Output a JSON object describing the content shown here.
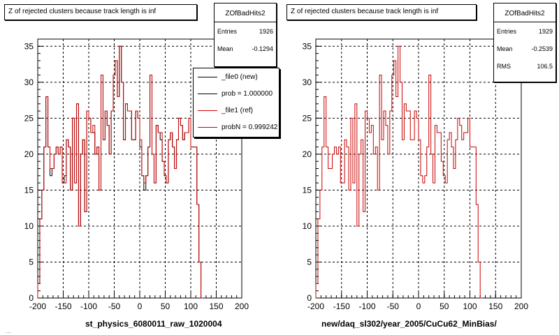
{
  "chart_data": [
    {
      "type": "histogram",
      "title": "Z of rejected clusters  because track length is inf",
      "xlabel": "st_physics_6080011_raw_1020004",
      "ylabel": "",
      "xlim": [
        -200,
        200
      ],
      "ylim": [
        0,
        36
      ],
      "x_ticks": [
        "-200",
        "-150",
        "-100",
        "-50",
        "0",
        "50",
        "100",
        "150",
        "200"
      ],
      "y_ticks": [
        "0",
        "5",
        "10",
        "15",
        "20",
        "25",
        "30",
        "35"
      ],
      "grid": true,
      "bin_width": 4,
      "stats": {
        "name": "ZOfBadHits2",
        "entries_label": "Entries",
        "entries": "1926",
        "mean_label": "Mean",
        "mean": "-0.1294"
      },
      "legend": {
        "position": "top-right",
        "entries": [
          "_file0 (new)",
          "prob = 1.000000",
          "_file1 (ref)",
          "probN = 0.999242"
        ]
      },
      "series": [
        {
          "name": "_file0 (new)",
          "color": "#000000",
          "values": [
            2,
            11,
            15,
            21,
            28,
            21,
            17,
            18,
            20,
            21,
            20,
            21,
            16,
            17,
            22,
            21,
            15,
            25,
            16,
            27,
            10,
            20,
            22,
            12,
            26,
            25,
            23,
            23,
            20,
            21,
            15,
            31,
            22,
            26,
            24,
            20,
            26,
            31,
            33,
            28,
            35,
            30,
            22,
            27,
            26,
            26,
            22,
            22,
            26,
            25,
            21,
            17,
            15,
            17,
            21,
            31,
            20,
            16,
            24,
            23,
            22,
            19,
            17,
            16,
            22,
            23,
            21,
            18,
            22,
            25,
            24,
            22,
            23,
            23,
            25,
            21,
            21,
            21,
            13,
            5,
            0
          ]
        },
        {
          "name": "_file1 (ref)",
          "color": "#cc0000",
          "values": [
            2,
            11,
            15,
            21,
            28,
            21,
            18,
            18,
            20,
            21,
            20,
            21,
            16,
            16,
            22,
            21,
            15,
            25,
            16,
            27,
            10,
            20,
            22,
            12,
            26,
            25,
            23,
            24,
            20,
            21,
            15,
            31,
            22,
            26,
            24,
            20,
            26,
            31,
            33,
            28,
            35,
            30,
            22,
            27,
            26,
            26,
            22,
            22,
            26,
            25,
            22,
            17,
            16,
            17,
            21,
            31,
            20,
            16,
            24,
            23,
            23,
            19,
            17,
            16,
            22,
            23,
            21,
            18,
            22,
            25,
            24,
            22,
            23,
            23,
            25,
            21,
            21,
            21,
            13,
            5,
            0
          ]
        }
      ]
    },
    {
      "type": "histogram",
      "title": "Z of rejected clusters  because track length is inf",
      "xlabel": "new/daq_sl302/year_2005/CuCu62_MinBias/",
      "ylabel": "",
      "xlim": [
        -200,
        200
      ],
      "ylim": [
        0,
        36
      ],
      "x_ticks": [
        "-200",
        "-150",
        "-100",
        "-50",
        "0",
        "50",
        "100",
        "150",
        "200"
      ],
      "y_ticks": [
        "0",
        "5",
        "10",
        "15",
        "20",
        "25",
        "30",
        "35"
      ],
      "grid": true,
      "bin_width": 4,
      "stats": {
        "name": "ZOfBadHits2",
        "entries_label": "Entries",
        "entries": "1929",
        "mean_label": "Mean",
        "mean": "-0.2539",
        "rms_label": "RMS",
        "rms": "106.5"
      },
      "series": [
        {
          "name": "",
          "color": "#cc0000",
          "values": [
            2,
            11,
            15,
            21,
            28,
            21,
            18,
            18,
            20,
            21,
            20,
            21,
            16,
            16,
            22,
            21,
            15,
            25,
            16,
            27,
            10,
            20,
            22,
            12,
            26,
            25,
            23,
            24,
            20,
            21,
            15,
            31,
            22,
            26,
            24,
            20,
            26,
            31,
            33,
            28,
            35,
            30,
            22,
            27,
            26,
            26,
            22,
            22,
            26,
            25,
            22,
            17,
            16,
            17,
            21,
            31,
            20,
            16,
            24,
            23,
            23,
            19,
            17,
            16,
            22,
            23,
            21,
            18,
            22,
            25,
            24,
            22,
            23,
            23,
            25,
            21,
            21,
            21,
            13,
            5,
            0
          ]
        }
      ]
    }
  ],
  "footer_text": "…"
}
